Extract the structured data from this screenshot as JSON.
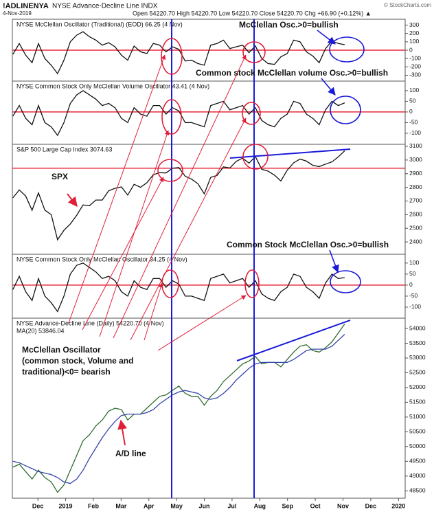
{
  "header": {
    "symbol": "!ADLINENYA",
    "name": "NYSE Advance-Decline Line INDX",
    "date": "4-Nov-2019",
    "quote": "Open 54220.70 High 54220.70 Low 54220.70 Close 54220.70 Chg +66.90 (+0.12%) ▲",
    "credit": "© StockCharts.com"
  },
  "annotations": [
    {
      "text": "McClellan Osc.>0=bullish",
      "color": "#1a1ad8"
    },
    {
      "text": "Common stock McClellan volume Osc.>0=bullish",
      "color": "#1a1ad8"
    },
    {
      "text": "SPX",
      "color": "#e0203a"
    },
    {
      "text": "Common Stock McClellan Osc.>0=bullish",
      "color": "#1a1ad8"
    },
    {
      "lines": [
        "McClellan Oscillator",
        "(common stock, Volume and",
        "traditional)<0= bearish"
      ],
      "color": "#e0203a"
    },
    {
      "text": "A/D line",
      "color": "#e0203a"
    }
  ],
  "chart_data": [
    {
      "type": "line",
      "title": "NYSE McClellan Oscillator (Traditional) (EOD) 66.25 (4 Nov)",
      "ylim": [
        -370,
        370
      ],
      "yticks": [
        -300,
        -200,
        -100,
        0,
        100,
        200,
        300
      ],
      "reference_line": 0,
      "reference_color": "#e8283c",
      "series": [
        {
          "color": "#111111",
          "values": [
            -50,
            80,
            -60,
            -150,
            80,
            -100,
            -180,
            -280,
            -120,
            100,
            180,
            220,
            160,
            120,
            60,
            90,
            40,
            -60,
            -120,
            50,
            -20,
            -40,
            80,
            60,
            -20,
            40,
            10,
            -130,
            -120,
            -160,
            -180,
            60,
            80,
            120,
            20,
            40,
            60,
            -30,
            50,
            -100,
            -160,
            -170,
            -80,
            -40,
            120,
            100,
            -20,
            -70,
            -150,
            20,
            110,
            80,
            66
          ]
        }
      ]
    },
    {
      "type": "line",
      "title": "NYSE Common Stock Only McClellan Volume Oscillator 43.41 (4 Nov)",
      "ylim": [
        -152,
        145
      ],
      "yticks": [
        -100,
        -50,
        0,
        50,
        100
      ],
      "reference_line": 0,
      "reference_color": "#e8283c",
      "series": [
        {
          "color": "#111111",
          "values": [
            -20,
            30,
            -30,
            -60,
            30,
            -50,
            -70,
            -110,
            -50,
            40,
            80,
            100,
            80,
            60,
            30,
            40,
            20,
            -30,
            -50,
            20,
            -10,
            -20,
            30,
            30,
            -10,
            20,
            5,
            -50,
            -50,
            -60,
            -70,
            30,
            40,
            50,
            10,
            20,
            30,
            -10,
            20,
            -40,
            -60,
            -70,
            -30,
            -10,
            50,
            40,
            -10,
            -30,
            -60,
            10,
            50,
            30,
            43
          ]
        }
      ]
    },
    {
      "type": "line",
      "title": "S&P 500 Large Cap Index 3074.63",
      "ylim": [
        2310,
        3115
      ],
      "yticks": [
        2400,
        2500,
        2600,
        2700,
        2800,
        2900,
        3000,
        3100
      ],
      "reference_line": 2940,
      "reference_color": "#e8283c",
      "series": [
        {
          "color": "#111111",
          "values": [
            2723,
            2781,
            2736,
            2632,
            2760,
            2633,
            2600,
            2416,
            2485,
            2532,
            2596,
            2671,
            2665,
            2707,
            2707,
            2775,
            2793,
            2803,
            2743,
            2822,
            2800,
            2834,
            2892,
            2907,
            2905,
            2940,
            2945,
            2881,
            2860,
            2826,
            2752,
            2873,
            2887,
            2950,
            2942,
            2990,
            3014,
            2977,
            3025,
            2932,
            2919,
            2889,
            2847,
            2926,
            2979,
            3007,
            2992,
            2961,
            2952,
            2970,
            2986,
            3023,
            3067
          ]
        }
      ]
    },
    {
      "type": "line",
      "title": "NYSE Common Stock Only McClellan Oscillator 34.25 (4 Nov)",
      "ylim": [
        -150,
        140
      ],
      "yticks": [
        -100,
        -50,
        0,
        50,
        100
      ],
      "reference_line": 0,
      "reference_color": "#e8283c",
      "series": [
        {
          "color": "#111111",
          "values": [
            -20,
            40,
            -30,
            -70,
            30,
            -50,
            -80,
            -120,
            -50,
            50,
            90,
            100,
            80,
            60,
            30,
            40,
            20,
            -30,
            -50,
            20,
            -10,
            -20,
            30,
            30,
            -10,
            20,
            5,
            -50,
            -50,
            -60,
            -70,
            30,
            40,
            50,
            10,
            20,
            30,
            -10,
            20,
            -40,
            -60,
            -70,
            -30,
            -10,
            50,
            40,
            -10,
            -30,
            -60,
            10,
            50,
            30,
            34
          ]
        }
      ]
    },
    {
      "type": "line",
      "x": [
        -0.9,
        -0.67,
        -0.44,
        -0.21,
        0.02,
        0.25,
        0.48,
        0.71,
        0.94,
        1.17,
        1.4,
        1.63,
        1.86,
        2.09,
        2.32,
        2.55,
        2.78,
        3.01,
        3.24,
        3.47,
        3.7,
        3.93,
        4.16,
        4.39,
        4.62,
        4.85,
        5.08,
        5.31,
        5.54,
        5.77,
        6.0,
        6.23,
        6.46,
        6.69,
        6.92,
        7.15,
        7.38,
        7.61,
        7.84,
        8.07,
        8.3,
        8.53,
        8.76,
        8.99,
        9.22,
        9.45,
        9.68,
        9.91,
        10.14,
        10.37,
        10.6,
        10.83,
        11.06
      ],
      "xlim": [
        -0.92,
        13.24
      ],
      "xticks": [
        {
          "value": 0,
          "label": "Dec"
        },
        {
          "value": 1,
          "label": "2019"
        },
        {
          "value": 2,
          "label": "Feb"
        },
        {
          "value": 3,
          "label": "Mar"
        },
        {
          "value": 4,
          "label": "Apr"
        },
        {
          "value": 5,
          "label": "May"
        },
        {
          "value": 6,
          "label": "Jun"
        },
        {
          "value": 7,
          "label": "Jul"
        },
        {
          "value": 8,
          "label": "Aug"
        },
        {
          "value": 9,
          "label": "Sep"
        },
        {
          "value": 10,
          "label": "Oct"
        },
        {
          "value": 11,
          "label": "Nov"
        },
        {
          "value": 12,
          "label": "Dec"
        },
        {
          "value": 13,
          "label": "2020"
        }
      ],
      "ylim": [
        48250,
        54350
      ],
      "yticks": [
        48500,
        49000,
        49500,
        50000,
        50500,
        51000,
        51500,
        52000,
        52500,
        53000,
        53500,
        54000
      ],
      "series": [
        {
          "name": "NYSE Advance-Decline Line (Daily) 54220.70 (4 Nov)",
          "color": "#2f6b2f",
          "values": [
            49300,
            49400,
            49150,
            48900,
            49200,
            48950,
            48800,
            48450,
            48700,
            49200,
            49700,
            50200,
            50400,
            50700,
            50900,
            51200,
            51300,
            51250,
            50900,
            51100,
            51100,
            51300,
            51500,
            51700,
            51750,
            51900,
            52050,
            51800,
            51700,
            51700,
            51400,
            51700,
            51900,
            52200,
            52400,
            52600,
            52800,
            52900,
            53050,
            52800,
            52850,
            52850,
            52700,
            52950,
            53200,
            53400,
            53450,
            53250,
            53200,
            53350,
            53550,
            53850,
            54150
          ]
        },
        {
          "name": "MA(20) 53846.04",
          "color": "#3344aa",
          "values": [
            49500,
            49450,
            49350,
            49250,
            49150,
            49100,
            49050,
            48950,
            48800,
            48750,
            48900,
            49200,
            49600,
            49950,
            50300,
            50600,
            50850,
            51050,
            51100,
            51100,
            51100,
            51150,
            51250,
            51450,
            51600,
            51750,
            51850,
            51900,
            51850,
            51800,
            51650,
            51600,
            51650,
            51800,
            52000,
            52250,
            52450,
            52650,
            52800,
            52850,
            52850,
            52850,
            52850,
            52850,
            52950,
            53100,
            53250,
            53300,
            53300,
            53300,
            53400,
            53600,
            53800
          ]
        }
      ]
    }
  ]
}
